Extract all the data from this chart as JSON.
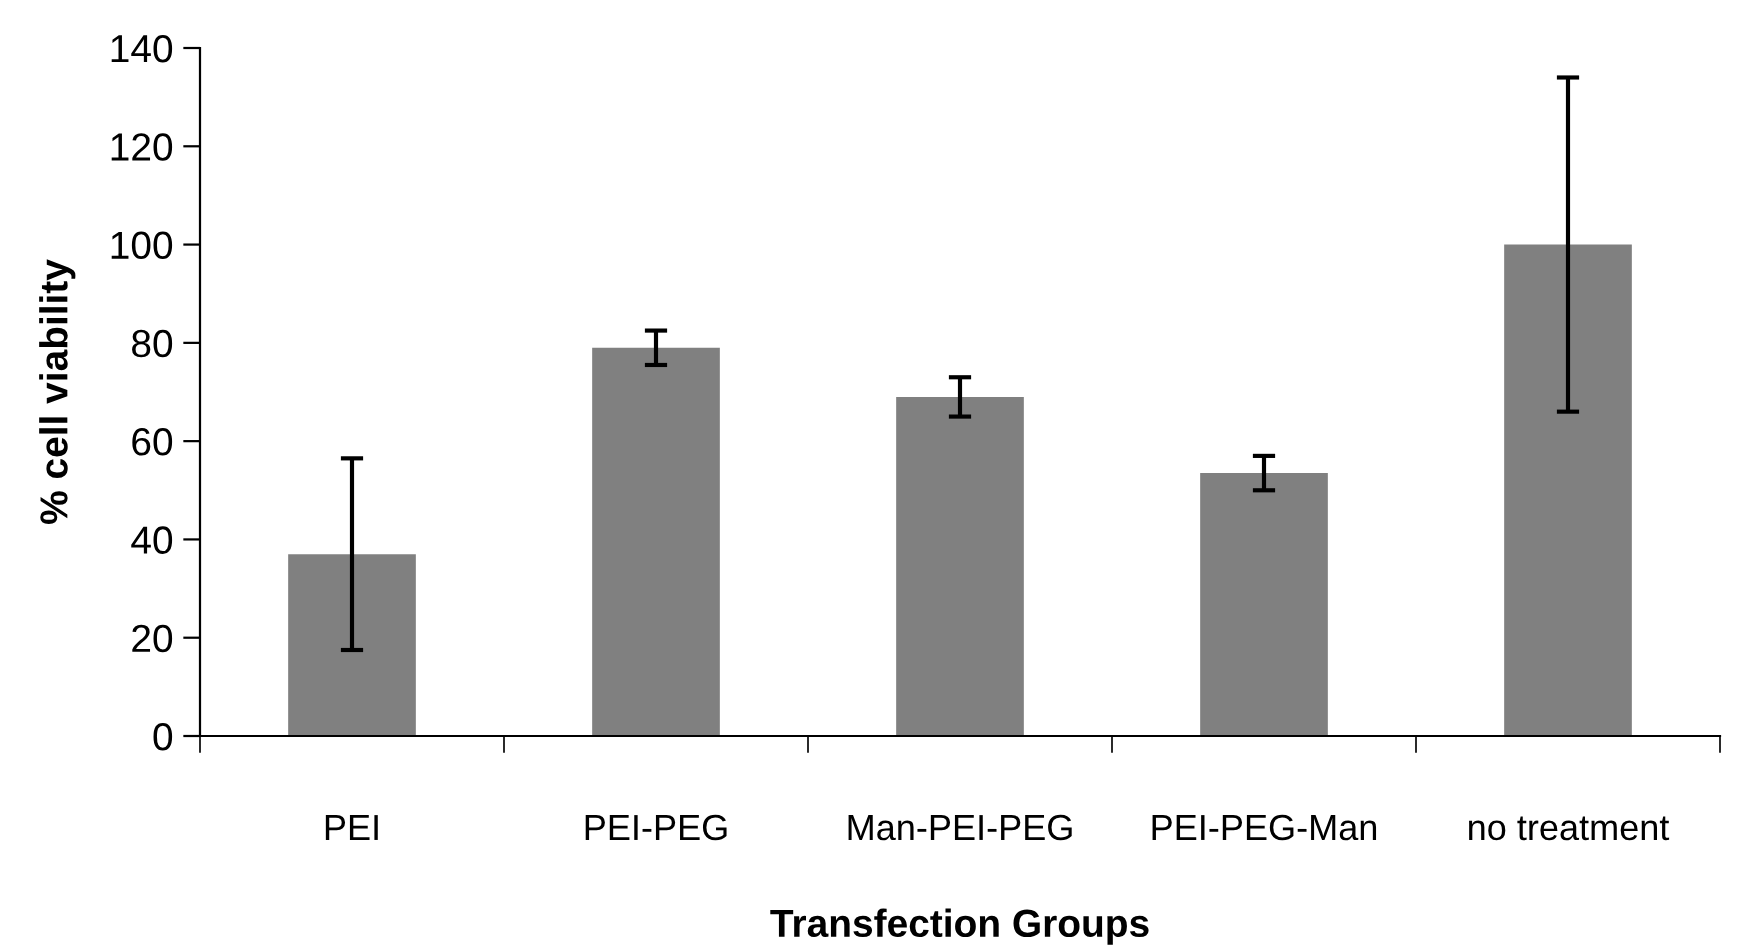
{
  "chart_data": {
    "type": "bar",
    "xlabel": "Transfection Groups",
    "ylabel": "% cell viability",
    "categories": [
      "PEI",
      "PEI-PEG",
      "Man-PEI-PEG",
      "PEI-PEG-Man",
      "no treatment"
    ],
    "values": [
      37,
      79,
      69,
      53.5,
      100
    ],
    "errors": [
      19.5,
      3.5,
      4,
      3.5,
      34
    ],
    "color": "#808080",
    "ylim": [
      0,
      140
    ],
    "yticks": [
      0,
      20,
      40,
      60,
      80,
      100,
      120,
      140
    ],
    "grid": false,
    "legend": false
  }
}
